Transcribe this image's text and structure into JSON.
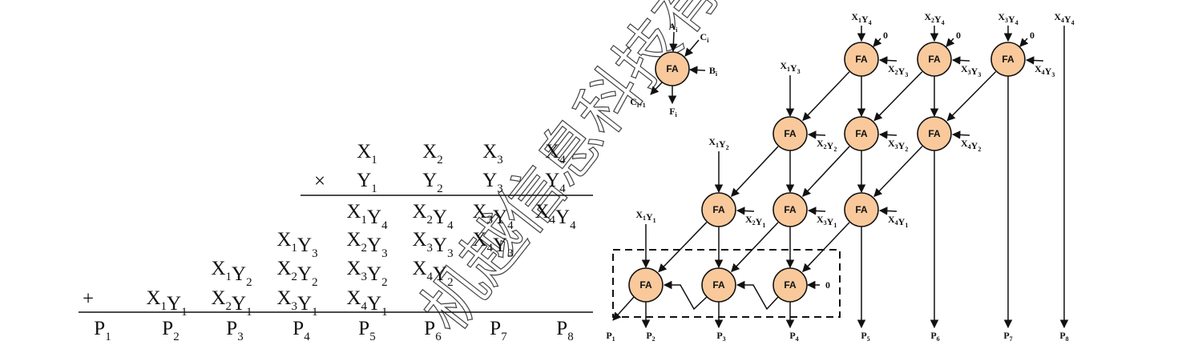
{
  "watermark": "机越信息科技有限",
  "multiplication": {
    "multiplicand": [
      [
        "X",
        "1"
      ],
      [
        "X",
        "2"
      ],
      [
        "X",
        "3"
      ],
      [
        "X",
        "4"
      ]
    ],
    "multiplier": [
      [
        "Y",
        "1"
      ],
      [
        "Y",
        "2"
      ],
      [
        "Y",
        "3"
      ],
      [
        "Y",
        "4"
      ]
    ],
    "times_sign": "×",
    "plus_sign": "+",
    "partial_products": [
      [
        "X1Y4",
        "X2Y4",
        "X3Y4",
        "X4Y4"
      ],
      [
        "X1Y3",
        "X2Y3",
        "X3Y3",
        "X4Y3"
      ],
      [
        "X1Y2",
        "X2Y2",
        "X3Y2",
        "X4Y2"
      ],
      [
        "X1Y1",
        "X2Y1",
        "X3Y1",
        "X4Y1"
      ]
    ],
    "products": [
      [
        "P",
        "1"
      ],
      [
        "P",
        "2"
      ],
      [
        "P",
        "3"
      ],
      [
        "P",
        "4"
      ],
      [
        "P",
        "5"
      ],
      [
        "P",
        "6"
      ],
      [
        "P",
        "7"
      ],
      [
        "P",
        "8"
      ]
    ]
  },
  "legend_cell": {
    "label": "FA",
    "inputs": [
      [
        "A",
        "i"
      ],
      [
        "C",
        "i"
      ],
      [
        "B",
        "i"
      ]
    ],
    "outputs": [
      [
        "C",
        "i+1"
      ],
      [
        "F",
        "i"
      ]
    ]
  },
  "array": {
    "cell_label": "FA",
    "zero": "0",
    "top_inputs": [
      "X1Y4",
      "X2Y4",
      "X3Y4",
      "X4Y4"
    ],
    "row_inputs": {
      "row0_right": [
        "X2Y3",
        "X3Y3",
        "X4Y3"
      ],
      "row0_left": "X1Y3",
      "row1_right": [
        "X2Y2",
        "X3Y2",
        "X4Y2"
      ],
      "row1_left": "X1Y2",
      "row2_right": [
        "X2Y1",
        "X3Y1",
        "X4Y1"
      ],
      "row2_left": "X1Y1"
    },
    "outputs": [
      [
        "P",
        "1"
      ],
      [
        "P",
        "2"
      ],
      [
        "P",
        "3"
      ],
      [
        "P",
        "4"
      ],
      [
        "P",
        "5"
      ],
      [
        "P",
        "6"
      ],
      [
        "P",
        "7"
      ],
      [
        "P",
        "8"
      ]
    ]
  }
}
